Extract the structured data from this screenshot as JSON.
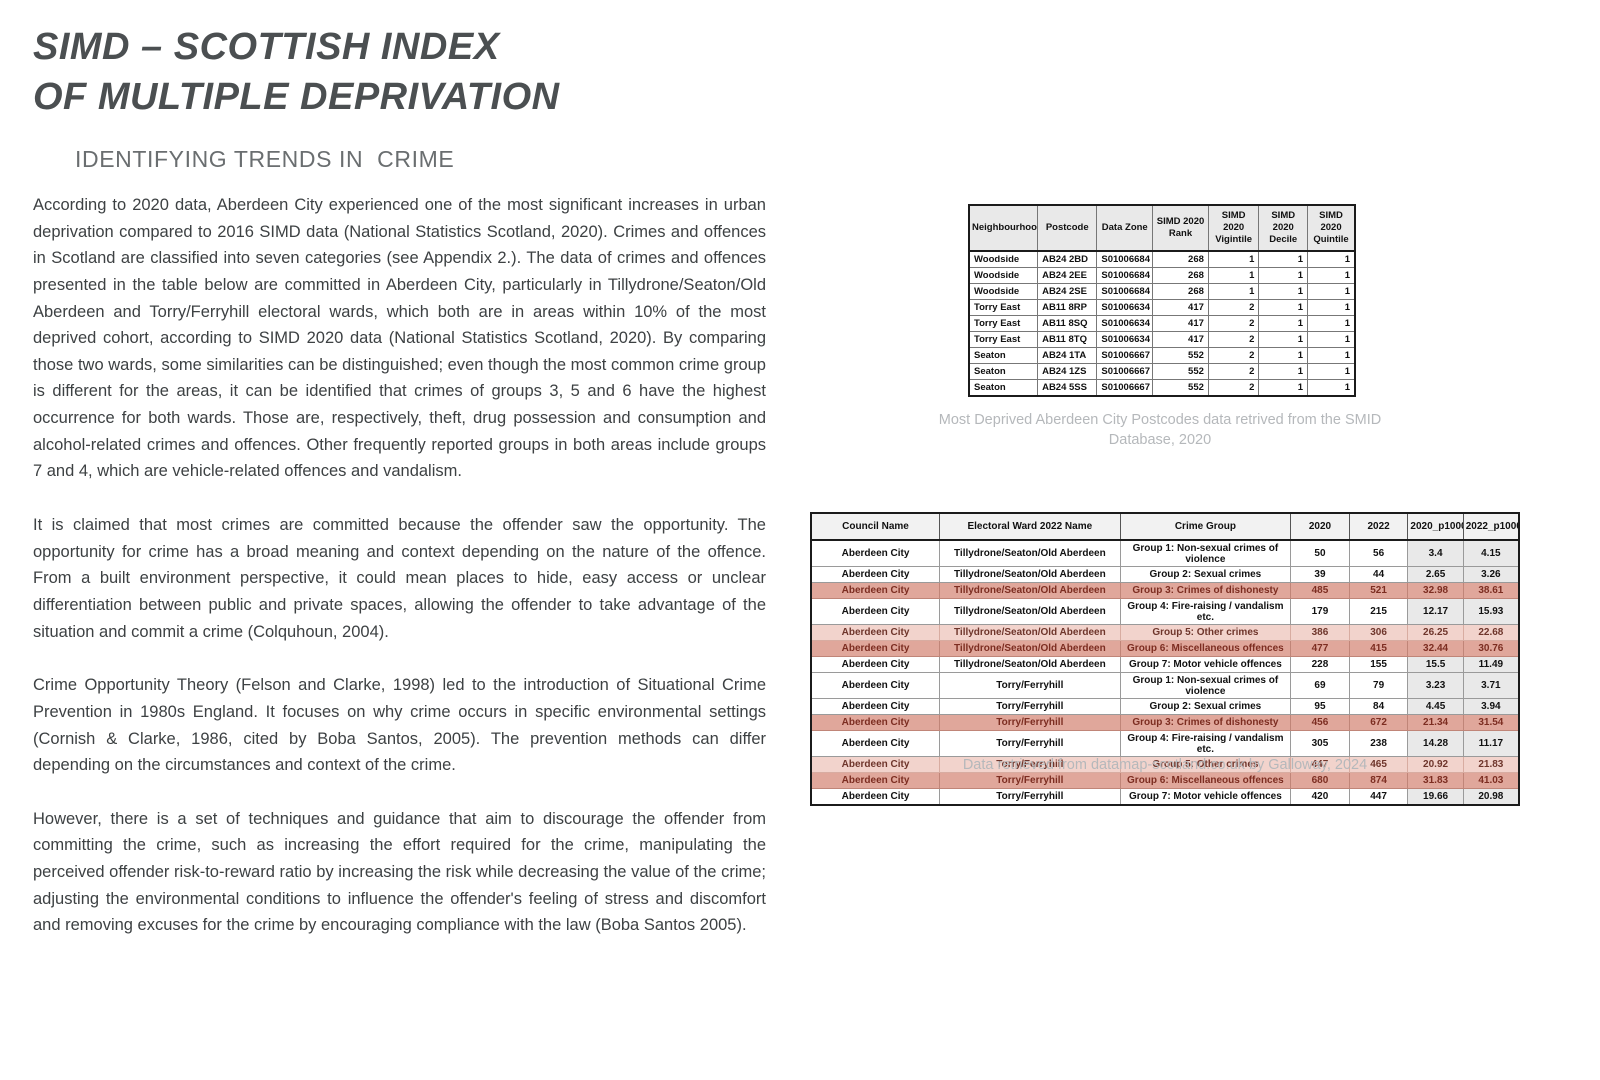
{
  "page": {
    "title_line1": "SIMD – SCOTTISH INDEX",
    "title_line2": "OF MULTIPLE DEPRIVATION",
    "subtitle": "IDENTIFYING TRENDS IN  CRIME",
    "paragraphs": [
      "According to 2020 data, Aberdeen City experienced one of the most significant increases in urban deprivation compared to 2016 SIMD data (National Statistics Scotland, 2020). Crimes and offences in Scotland are classified into seven categories (see Appendix 2.). The data of crimes and offences presented in the table below are committed in Aberdeen City, particularly in Tillydrone/Seaton/Old Aberdeen and Torry/Ferryhill electoral wards, which both are in areas within 10% of the most deprived cohort, according to SIMD 2020 data (National Statistics Scotland, 2020). By comparing those two wards, some similarities can be distinguished; even though the most common crime group is different for the areas, it can be identified that crimes of groups 3, 5 and 6 have the highest occurrence for both wards. Those are, respectively, theft, drug possession and consumption and alcohol-related crimes and offences. Other frequently reported groups in both areas include groups 7 and 4, which are vehicle-related offences and vandalism.",
      "It is claimed that most crimes are committed because the offender saw the opportunity. The opportunity for crime has a broad meaning and context depending on the nature of the offence. From a built environment perspective, it could mean places to hide, easy access or unclear differentiation between public and private spaces, allowing the offender to take advantage of the situation and commit a crime (Colquhoun, 2004).",
      "Crime Opportunity Theory (Felson and Clarke, 1998) led to the introduction of Situational Crime Prevention in 1980s England. It focuses on why crime occurs in specific environmental settings (Cornish & Clarke, 1986, cited by Boba Santos, 2005). The prevention methods can differ depending on the circumstances and context of the crime.",
      "However, there is a set of techniques and guidance that aim to discourage the offender from committing the crime, such as increasing the effort required for the crime, manipulating the perceived offender risk-to-reward ratio by increasing the risk while decreasing the value of the crime; adjusting the environmental conditions to influence the offender's feeling of stress and discomfort and removing excuses for the crime by encouraging compliance with the law (Boba  Santos 2005)."
    ]
  },
  "simd_table": {
    "headers": [
      "Neighbourhood",
      "Postcode",
      "Data Zone",
      "SIMD 2020 Rank",
      "SIMD 2020 Vigintile",
      "SIMD 2020 Decile",
      "SIMD 2020 Quintile"
    ],
    "rows": [
      [
        "Woodside",
        "AB24 2BD",
        "S01006684",
        "268",
        "1",
        "1",
        "1"
      ],
      [
        "Woodside",
        "AB24 2EE",
        "S01006684",
        "268",
        "1",
        "1",
        "1"
      ],
      [
        "Woodside",
        "AB24 2SE",
        "S01006684",
        "268",
        "1",
        "1",
        "1"
      ],
      [
        "Torry East",
        "AB11 8RP",
        "S01006634",
        "417",
        "2",
        "1",
        "1"
      ],
      [
        "Torry East",
        "AB11 8SQ",
        "S01006634",
        "417",
        "2",
        "1",
        "1"
      ],
      [
        "Torry East",
        "AB11 8TQ",
        "S01006634",
        "417",
        "2",
        "1",
        "1"
      ],
      [
        "Seaton",
        "AB24 1TA",
        "S01006667",
        "552",
        "2",
        "1",
        "1"
      ],
      [
        "Seaton",
        "AB24 1ZS",
        "S01006667",
        "552",
        "2",
        "1",
        "1"
      ],
      [
        "Seaton",
        "AB24 5SS",
        "S01006667",
        "552",
        "2",
        "1",
        "1"
      ]
    ],
    "caption": "Most Deprived Aberdeen City Postcodes data retrived from the SMID Database, 2020"
  },
  "crime_table": {
    "headers": [
      "Council Name",
      "Electoral Ward 2022 Name",
      "Crime Group",
      "2020",
      "2022",
      "2020_p1000",
      "2022_p1000"
    ],
    "rows": [
      {
        "cells": [
          "Aberdeen City",
          "Tillydrone/Seaton/Old Aberdeen",
          "Group 1: Non-sexual crimes of violence",
          "50",
          "56",
          "3.4",
          "4.15"
        ],
        "highlight": "none"
      },
      {
        "cells": [
          "Aberdeen City",
          "Tillydrone/Seaton/Old Aberdeen",
          "Group 2: Sexual crimes",
          "39",
          "44",
          "2.65",
          "3.26"
        ],
        "highlight": "none"
      },
      {
        "cells": [
          "Aberdeen City",
          "Tillydrone/Seaton/Old Aberdeen",
          "Group 3: Crimes of dishonesty",
          "485",
          "521",
          "32.98",
          "38.61"
        ],
        "highlight": "dark"
      },
      {
        "cells": [
          "Aberdeen City",
          "Tillydrone/Seaton/Old Aberdeen",
          "Group 4: Fire-raising / vandalism etc.",
          "179",
          "215",
          "12.17",
          "15.93"
        ],
        "highlight": "none"
      },
      {
        "cells": [
          "Aberdeen City",
          "Tillydrone/Seaton/Old Aberdeen",
          "Group 5: Other crimes",
          "386",
          "306",
          "26.25",
          "22.68"
        ],
        "highlight": "light"
      },
      {
        "cells": [
          "Aberdeen City",
          "Tillydrone/Seaton/Old Aberdeen",
          "Group 6: Miscellaneous offences",
          "477",
          "415",
          "32.44",
          "30.76"
        ],
        "highlight": "dark"
      },
      {
        "cells": [
          "Aberdeen City",
          "Tillydrone/Seaton/Old Aberdeen",
          "Group 7: Motor vehicle offences",
          "228",
          "155",
          "15.5",
          "11.49"
        ],
        "highlight": "none"
      },
      {
        "cells": [
          "Aberdeen City",
          "Torry/Ferryhill",
          "Group 1: Non-sexual crimes of violence",
          "69",
          "79",
          "3.23",
          "3.71"
        ],
        "highlight": "none"
      },
      {
        "cells": [
          "Aberdeen City",
          "Torry/Ferryhill",
          "Group 2: Sexual crimes",
          "95",
          "84",
          "4.45",
          "3.94"
        ],
        "highlight": "none"
      },
      {
        "cells": [
          "Aberdeen City",
          "Torry/Ferryhill",
          "Group 3: Crimes of dishonesty",
          "456",
          "672",
          "21.34",
          "31.54"
        ],
        "highlight": "dark"
      },
      {
        "cells": [
          "Aberdeen City",
          "Torry/Ferryhill",
          "Group 4: Fire-raising / vandalism etc.",
          "305",
          "238",
          "14.28",
          "11.17"
        ],
        "highlight": "none"
      },
      {
        "cells": [
          "Aberdeen City",
          "Torry/Ferryhill",
          "Group 5: Other crimes",
          "447",
          "465",
          "20.92",
          "21.83"
        ],
        "highlight": "light"
      },
      {
        "cells": [
          "Aberdeen City",
          "Torry/Ferryhill",
          "Group 6: Miscellaneous offences",
          "680",
          "874",
          "31.83",
          "41.03"
        ],
        "highlight": "dark"
      },
      {
        "cells": [
          "Aberdeen City",
          "Torry/Ferryhill",
          "Group 7: Motor vehicle offences",
          "420",
          "447",
          "19.66",
          "20.98"
        ],
        "highlight": "none"
      }
    ],
    "caption": "Data retrieved from datamap-scotland.co.uk by Galloway, 2024"
  },
  "colors": {
    "highlight_dark_bg": "#e0a79b",
    "highlight_dark_text": "#7c2d21",
    "highlight_light_bg": "#f2d3cc",
    "highlight_light_text": "#6e352b",
    "numeric_column_bg": "#e9e9e9",
    "header_bg": "#f2f2f2",
    "title_text": "#4b4f51",
    "caption_text": "#b5b8bb"
  }
}
